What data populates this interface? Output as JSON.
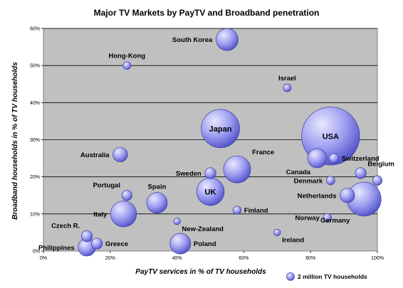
{
  "chart_data": {
    "type": "bubble",
    "title": "Major TV Markets by PayTV and Broadband penetration",
    "xlabel": "PayTV services in % of TV households",
    "ylabel": "Broadband households in % of TV households",
    "xlim": [
      0,
      100
    ],
    "ylim": [
      0,
      60
    ],
    "x_ticks": [
      0,
      20,
      40,
      60,
      80,
      100
    ],
    "y_ticks": [
      0,
      10,
      20,
      30,
      40,
      50,
      60
    ],
    "x_tick_labels": [
      "0%",
      "20%",
      "40%",
      "60%",
      "80%",
      "100%"
    ],
    "y_tick_labels": [
      "0%",
      "10%",
      "20%",
      "30%",
      "40%",
      "50%",
      "60%"
    ],
    "grid": "horizontal",
    "legend": {
      "label": "2 million TV households",
      "size_millions": 2,
      "placement": "bottom-right"
    },
    "colors": {
      "plot_bg": "#c0c0c0",
      "bubble": "#9c9cf0",
      "bubble_edge": "#4040a0",
      "grid": "#000000"
    },
    "points": [
      {
        "name": "South Korea",
        "x": 55,
        "y": 57,
        "size_millions": 16,
        "label_pos": "left"
      },
      {
        "name": "Hong-Kong",
        "x": 25,
        "y": 50,
        "size_millions": 2,
        "label_pos": "above"
      },
      {
        "name": "Israel",
        "x": 73,
        "y": 44,
        "size_millions": 2,
        "label_pos": "above"
      },
      {
        "name": "Japan",
        "x": 53,
        "y": 33,
        "size_millions": 48,
        "label_pos": "center"
      },
      {
        "name": "USA",
        "x": 86,
        "y": 31,
        "size_millions": 110,
        "label_pos": "center"
      },
      {
        "name": "Australia",
        "x": 23,
        "y": 26,
        "size_millions": 7,
        "label_pos": "left"
      },
      {
        "name": "Canada",
        "x": 82,
        "y": 25,
        "size_millions": 12,
        "label_pos": "below-left"
      },
      {
        "name": "Switzerland",
        "x": 87,
        "y": 25,
        "size_millions": 3,
        "label_pos": "right"
      },
      {
        "name": "France",
        "x": 58,
        "y": 22,
        "size_millions": 24,
        "label_pos": "above-right"
      },
      {
        "name": "Sweden",
        "x": 50,
        "y": 21,
        "size_millions": 4,
        "label_pos": "left"
      },
      {
        "name": "Belgium",
        "x": 95,
        "y": 21,
        "size_millions": 4,
        "label_pos": "above-right"
      },
      {
        "name": "Denmark",
        "x": 86,
        "y": 19,
        "size_millions": 2.4,
        "label_pos": "left"
      },
      {
        "name": "UK",
        "x": 50,
        "y": 16,
        "size_millions": 25,
        "label_pos": "center"
      },
      {
        "name": "Portugal",
        "x": 25,
        "y": 15,
        "size_millions": 3.5,
        "label_pos": "above-left"
      },
      {
        "name": "Netherlands",
        "x": 91,
        "y": 15,
        "size_millions": 7,
        "label_pos": "left"
      },
      {
        "name": "Germany",
        "x": 96,
        "y": 14,
        "size_millions": 38,
        "label_pos": "below-left"
      },
      {
        "name": "Spain",
        "x": 34,
        "y": 13,
        "size_millions": 14,
        "label_pos": "above"
      },
      {
        "name": "Finland",
        "x": 58,
        "y": 11,
        "size_millions": 2.2,
        "label_pos": "right"
      },
      {
        "name": "Italy",
        "x": 24,
        "y": 10,
        "size_millions": 22,
        "label_pos": "left"
      },
      {
        "name": "Norway",
        "x": 85,
        "y": 9,
        "size_millions": 2.2,
        "label_pos": "left"
      },
      {
        "name": "New-Zealand",
        "x": 40,
        "y": 8,
        "size_millions": 1.5,
        "label_pos": "below-right"
      },
      {
        "name": "Ireland",
        "x": 70,
        "y": 5,
        "size_millions": 1.5,
        "label_pos": "below-right"
      },
      {
        "name": "Czech R.",
        "x": 13,
        "y": 4,
        "size_millions": 4,
        "label_pos": "above-left"
      },
      {
        "name": "Greece",
        "x": 16,
        "y": 2,
        "size_millions": 4,
        "label_pos": "right"
      },
      {
        "name": "Philippines",
        "x": 13,
        "y": 1,
        "size_millions": 10,
        "label_pos": "left"
      },
      {
        "name": "Poland",
        "x": 41,
        "y": 2,
        "size_millions": 14,
        "label_pos": "right"
      },
      {
        "name": "",
        "x": 100,
        "y": 19,
        "size_millions": 3,
        "label_pos": "none"
      }
    ]
  }
}
